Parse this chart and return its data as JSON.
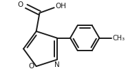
{
  "background_color": "#ffffff",
  "line_color": "#1a1a1a",
  "line_width": 1.4,
  "figsize": [
    1.86,
    1.23
  ],
  "dpi": 100,
  "xlim": [
    0,
    186
  ],
  "ylim": [
    0,
    123
  ]
}
